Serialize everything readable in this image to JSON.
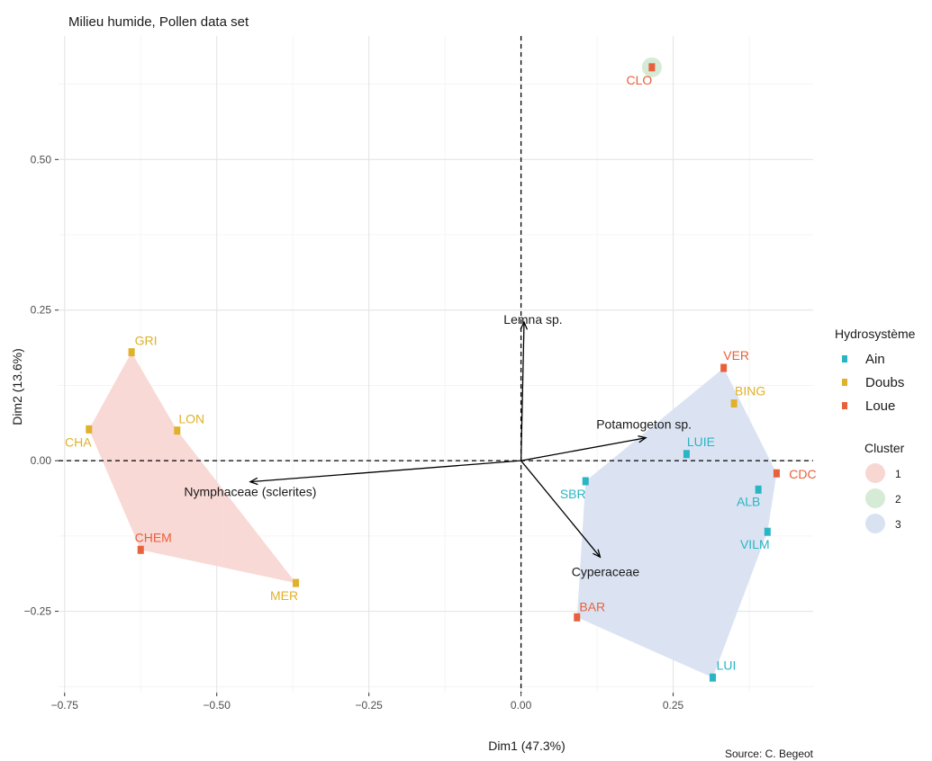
{
  "chart_data": {
    "type": "scatter",
    "title": "Milieu humide, Pollen data set",
    "xlabel": "Dim1 (47.3%)",
    "ylabel": "Dim2 (13.6%)",
    "caption": "Source: C. Begeot",
    "xlim": [
      -0.76,
      0.48
    ],
    "ylim": [
      -0.385,
      0.705
    ],
    "xticks": [
      -0.75,
      -0.5,
      -0.25,
      0.0,
      0.25
    ],
    "xtick_labels": [
      "−0.75",
      "−0.50",
      "−0.25",
      "0.00",
      "0.25"
    ],
    "yticks": [
      -0.25,
      0.0,
      0.25,
      0.5
    ],
    "ytick_labels": [
      "−0.25",
      "0.00",
      "0.25",
      "0.50"
    ],
    "grid": true,
    "colors": {
      "Ain": "#29b5c4",
      "Doubs": "#e0b12a",
      "Loue": "#e8603c",
      "cluster1": "#f8d7d3",
      "cluster2": "#d5ebd5",
      "cluster3": "#d9e2f1"
    },
    "points": [
      {
        "label": "CLO",
        "x": 0.215,
        "y": 0.653,
        "group": "Loue",
        "cluster": "2"
      },
      {
        "label": "GRI",
        "x": -0.64,
        "y": 0.18,
        "group": "Doubs",
        "cluster": "1"
      },
      {
        "label": "CHA",
        "x": -0.71,
        "y": 0.052,
        "group": "Doubs",
        "cluster": "1"
      },
      {
        "label": "LON",
        "x": -0.565,
        "y": 0.05,
        "group": "Doubs",
        "cluster": "1"
      },
      {
        "label": "CHEM",
        "x": -0.625,
        "y": -0.148,
        "group": "Loue",
        "cluster": "1"
      },
      {
        "label": "MER",
        "x": -0.37,
        "y": -0.203,
        "group": "Doubs",
        "cluster": "1"
      },
      {
        "label": "VER",
        "x": 0.333,
        "y": 0.154,
        "group": "Loue",
        "cluster": "3"
      },
      {
        "label": "BING",
        "x": 0.35,
        "y": 0.095,
        "group": "Doubs",
        "cluster": "3"
      },
      {
        "label": "LUIE",
        "x": 0.272,
        "y": 0.011,
        "group": "Ain",
        "cluster": "3"
      },
      {
        "label": "CDC",
        "x": 0.42,
        "y": -0.021,
        "group": "Loue",
        "cluster": "3"
      },
      {
        "label": "SBR",
        "x": 0.106,
        "y": -0.034,
        "group": "Ain",
        "cluster": "3"
      },
      {
        "label": "ALB",
        "x": 0.39,
        "y": -0.048,
        "group": "Ain",
        "cluster": "3"
      },
      {
        "label": "VILM",
        "x": 0.405,
        "y": -0.118,
        "group": "Ain",
        "cluster": "3"
      },
      {
        "label": "BAR",
        "x": 0.092,
        "y": -0.26,
        "group": "Loue",
        "cluster": "3"
      },
      {
        "label": "LUI",
        "x": 0.315,
        "y": -0.36,
        "group": "Ain",
        "cluster": "3"
      }
    ],
    "hulls": [
      {
        "cluster": "1",
        "members": [
          "GRI",
          "CHA",
          "CHEM",
          "MER",
          "LON"
        ]
      },
      {
        "cluster": "3",
        "members": [
          "VER",
          "CDC",
          "VILM",
          "LUI",
          "BAR",
          "SBR"
        ]
      }
    ],
    "cluster2_marker": {
      "cluster": "2",
      "x": 0.215,
      "y": 0.653
    },
    "arrows": [
      {
        "label": "Lemna sp.",
        "x": 0.005,
        "y": 0.23
      },
      {
        "label": "Potamogeton sp.",
        "x": 0.205,
        "y": 0.038
      },
      {
        "label": "Nymphaceae (sclerites)",
        "x": -0.445,
        "y": -0.035
      },
      {
        "label": "Cyperaceae",
        "x": 0.13,
        "y": -0.16
      }
    ],
    "legend": {
      "placement": "right",
      "group_title": "Hydrosystème",
      "groups": [
        "Ain",
        "Doubs",
        "Loue"
      ],
      "cluster_title": "Cluster",
      "clusters": [
        "1",
        "2",
        "3"
      ]
    }
  }
}
